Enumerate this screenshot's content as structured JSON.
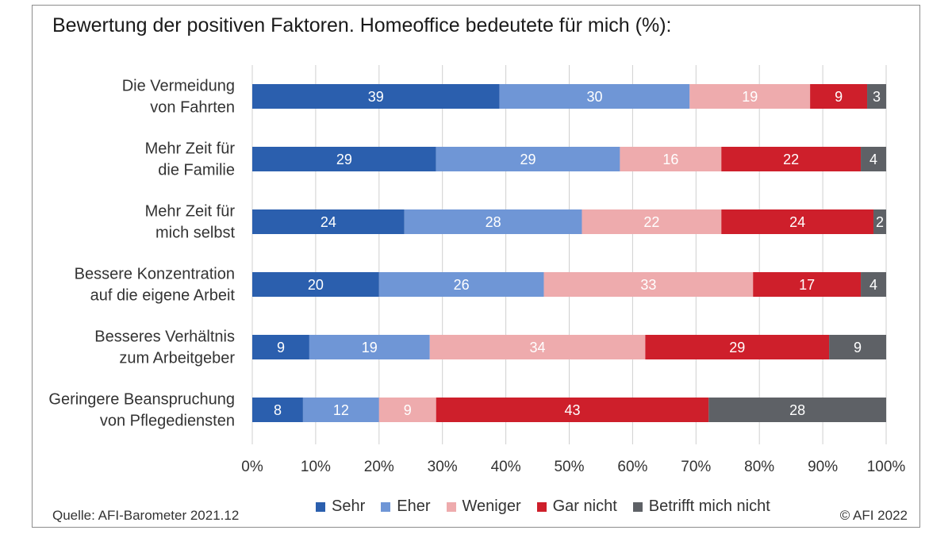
{
  "title": "Bewertung der positiven Faktoren. Homeoffice bedeutete für mich (%):",
  "source": "Quelle: AFI-Barometer 2021.12",
  "copyright": "© AFI 2022",
  "chart_data": {
    "type": "bar",
    "orientation": "horizontal",
    "stacked": true,
    "categories": [
      [
        "Die Vermeidung",
        "von Fahrten"
      ],
      [
        "Mehr Zeit für",
        "die Familie"
      ],
      [
        "Mehr Zeit für",
        "mich selbst"
      ],
      [
        "Bessere Konzentration",
        "auf die eigene Arbeit"
      ],
      [
        "Besseres Verhältnis",
        "zum Arbeitgeber"
      ],
      [
        "Geringere Beanspruchung",
        "von Pflegediensten"
      ]
    ],
    "series": [
      {
        "name": "Sehr",
        "color": "#2b5fae",
        "label_color": "#ffffff",
        "values": [
          39,
          29,
          24,
          20,
          9,
          8
        ]
      },
      {
        "name": "Eher",
        "color": "#6f96d6",
        "label_color": "#ffffff",
        "values": [
          30,
          29,
          28,
          26,
          19,
          12
        ]
      },
      {
        "name": "Weniger",
        "color": "#eeabad",
        "label_color": "#ffffff",
        "values": [
          19,
          16,
          22,
          33,
          34,
          9
        ]
      },
      {
        "name": "Gar nicht",
        "color": "#ce1f2b",
        "label_color": "#ffffff",
        "values": [
          9,
          22,
          24,
          17,
          29,
          43
        ]
      },
      {
        "name": "Betrifft mich nicht",
        "color": "#5e6166",
        "label_color": "#ffffff",
        "values": [
          3,
          4,
          2,
          4,
          9,
          28
        ]
      }
    ],
    "xlim": [
      0,
      100
    ],
    "xticks": [
      "0%",
      "10%",
      "20%",
      "30%",
      "40%",
      "50%",
      "60%",
      "70%",
      "80%",
      "90%",
      "100%"
    ],
    "grid": "vertical",
    "legend": "bottom"
  }
}
